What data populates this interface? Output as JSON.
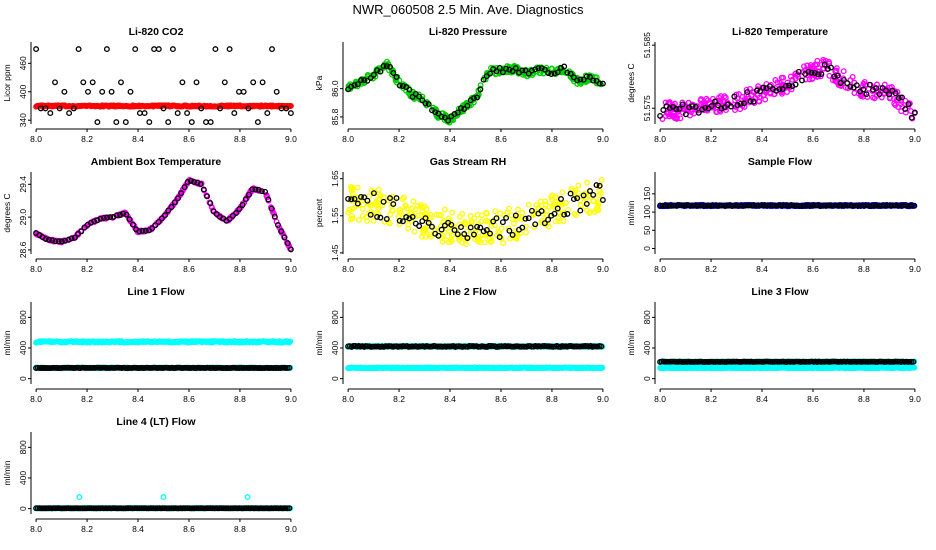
{
  "title": "NWR_060508  2.5 Min. Ave. Diagnostics",
  "colors": {
    "black": "#000000",
    "red": "#ff0000",
    "green": "#00cc00",
    "magenta": "#ff00ff",
    "yellow": "#ffff00",
    "cyan": "#00ffff",
    "blue": "#0000ff"
  },
  "chart_data": [
    {
      "type": "scatter",
      "title": "Li-820 CO2",
      "xlabel": "",
      "ylabel": "Licor ppm",
      "xlim": [
        7.98,
        9.02
      ],
      "ylim": [
        332,
        505
      ],
      "xticks": [
        "8.0",
        "8.2",
        "8.4",
        "8.6",
        "8.8",
        "9.0"
      ],
      "yticks": [
        "340",
        "400",
        "460"
      ],
      "ytick_values": [
        340,
        400,
        460
      ],
      "gen": {
        "kind": "co2"
      },
      "series": [
        {
          "name": "red",
          "color": "red",
          "values_summary": "~370 ppm flat"
        },
        {
          "name": "black",
          "color": "black",
          "levels": [
            336,
            355,
            365,
            400,
            420,
            490
          ]
        }
      ]
    },
    {
      "type": "scatter",
      "title": "Li-820 Pressure",
      "xlabel": "",
      "ylabel": "kPa",
      "xlim": [
        7.98,
        9.02
      ],
      "ylim": [
        85.75,
        86.33
      ],
      "xticks": [
        "8.0",
        "8.2",
        "8.4",
        "8.6",
        "8.8",
        "9.0"
      ],
      "yticks": [
        "85.8",
        "86.0"
      ],
      "ytick_values": [
        85.8,
        86.0
      ],
      "gen": {
        "kind": "curve",
        "color": "green",
        "spread": 0.05,
        "x": [
          8.0,
          8.05,
          8.1,
          8.15,
          8.2,
          8.25,
          8.3,
          8.35,
          8.4,
          8.45,
          8.5,
          8.55,
          8.6,
          8.65,
          8.7,
          8.75,
          8.8,
          8.85,
          8.9,
          8.95,
          9.0
        ],
        "y": [
          86.0,
          86.05,
          86.09,
          86.18,
          86.04,
          85.96,
          85.92,
          85.82,
          85.78,
          85.86,
          85.93,
          86.12,
          86.13,
          86.14,
          86.11,
          86.13,
          86.12,
          86.14,
          86.05,
          86.08,
          86.04
        ]
      }
    },
    {
      "type": "scatter",
      "title": "Li-820 Temperature",
      "xlabel": "",
      "ylabel": "degrees C",
      "xlim": [
        7.98,
        9.02
      ],
      "ylim": [
        51.5725,
        51.5855
      ],
      "xticks": [
        "8.0",
        "8.2",
        "8.4",
        "8.6",
        "8.8",
        "9.0"
      ],
      "yticks": [
        "51.575",
        "51.585"
      ],
      "ytick_values": [
        51.575,
        51.585
      ],
      "gen": {
        "kind": "curve",
        "color": "magenta",
        "spread": 0.0028,
        "x": [
          8.0,
          8.1,
          8.2,
          8.3,
          8.4,
          8.5,
          8.55,
          8.6,
          8.65,
          8.7,
          8.8,
          8.9,
          9.0
        ],
        "y": [
          51.5745,
          51.5748,
          51.5755,
          51.576,
          51.5775,
          51.579,
          51.58,
          51.581,
          51.5815,
          51.58,
          51.578,
          51.5775,
          51.574
        ]
      }
    },
    {
      "type": "scatter",
      "title": "Ambient Box Temperature",
      "xlabel": "",
      "ylabel": "degrees C",
      "xlim": [
        7.98,
        9.02
      ],
      "ylim": [
        28.55,
        29.55
      ],
      "xticks": [
        "8.0",
        "8.2",
        "8.4",
        "8.6",
        "8.8",
        "9.0"
      ],
      "yticks": [
        "28.6",
        "29.0",
        "29.4"
      ],
      "ytick_values": [
        28.6,
        29.0,
        29.4
      ],
      "gen": {
        "kind": "curve",
        "color": "magenta",
        "spread": 0.02,
        "x": [
          8.0,
          8.05,
          8.1,
          8.15,
          8.2,
          8.25,
          8.3,
          8.35,
          8.4,
          8.45,
          8.5,
          8.55,
          8.6,
          8.65,
          8.7,
          8.75,
          8.8,
          8.85,
          8.9,
          8.95,
          9.0
        ],
        "y": [
          28.8,
          28.72,
          28.7,
          28.75,
          28.9,
          28.98,
          29.0,
          29.05,
          28.82,
          28.85,
          29.0,
          29.2,
          29.45,
          29.4,
          29.05,
          28.95,
          29.1,
          29.35,
          29.3,
          28.9,
          28.6
        ]
      }
    },
    {
      "type": "scatter",
      "title": "Gas Stream RH",
      "xlabel": "",
      "ylabel": "percent",
      "xlim": [
        7.98,
        9.02
      ],
      "ylim": [
        1.447,
        1.668
      ],
      "xticks": [
        "8.0",
        "8.2",
        "8.4",
        "8.6",
        "8.8",
        "9.0"
      ],
      "yticks": [
        "1.45",
        "1.55",
        "1.65"
      ],
      "ytick_values": [
        1.45,
        1.55,
        1.65
      ],
      "gen": {
        "kind": "curve",
        "color": "yellow",
        "spread": 0.09,
        "x": [
          8.0,
          8.1,
          8.2,
          8.3,
          8.4,
          8.5,
          8.6,
          8.7,
          8.8,
          8.9,
          9.0
        ],
        "y": [
          1.585,
          1.58,
          1.565,
          1.535,
          1.52,
          1.51,
          1.52,
          1.535,
          1.56,
          1.59,
          1.61
        ]
      }
    },
    {
      "type": "scatter",
      "title": "Sample Flow",
      "xlabel": "",
      "ylabel": "ml/min",
      "xlim": [
        7.98,
        9.02
      ],
      "ylim": [
        -15,
        210
      ],
      "xticks": [
        "8.0",
        "8.2",
        "8.4",
        "8.6",
        "8.8",
        "9.0"
      ],
      "yticks": [
        "0",
        "50",
        "100",
        "150"
      ],
      "ytick_values": [
        0,
        50,
        100,
        150
      ],
      "gen": {
        "kind": "flat",
        "levels": [
          {
            "y": 118,
            "color": "blue",
            "jitter": 2
          },
          {
            "y": 118,
            "color": "black",
            "jitter": 1,
            "sparse": 3
          }
        ]
      }
    },
    {
      "type": "scatter",
      "title": "Line 1 Flow",
      "xlabel": "",
      "ylabel": "ml/min",
      "xlim": [
        7.98,
        9.02
      ],
      "ylim": [
        -70,
        1000
      ],
      "xticks": [
        "8.0",
        "8.2",
        "8.4",
        "8.6",
        "8.8",
        "9.0"
      ],
      "yticks": [
        "0",
        "400",
        "800"
      ],
      "ytick_values": [
        0,
        400,
        800
      ],
      "gen": {
        "kind": "flat",
        "levels": [
          {
            "y": 480,
            "color": "cyan",
            "jitter": 10
          },
          {
            "y": 140,
            "color": "cyan",
            "jitter": 5
          },
          {
            "y": 140,
            "color": "black",
            "jitter": 3,
            "sparse": 2
          }
        ]
      }
    },
    {
      "type": "scatter",
      "title": "Line 2 Flow",
      "xlabel": "",
      "ylabel": "ml/min",
      "xlim": [
        7.98,
        9.02
      ],
      "ylim": [
        -70,
        1000
      ],
      "xticks": [
        "8.0",
        "8.2",
        "8.4",
        "8.6",
        "8.8",
        "9.0"
      ],
      "yticks": [
        "0",
        "400",
        "800"
      ],
      "ytick_values": [
        0,
        400,
        800
      ],
      "gen": {
        "kind": "flat",
        "levels": [
          {
            "y": 420,
            "color": "cyan",
            "jitter": 8
          },
          {
            "y": 140,
            "color": "cyan",
            "jitter": 5
          },
          {
            "y": 420,
            "color": "black",
            "jitter": 6,
            "sparse": 2
          }
        ]
      }
    },
    {
      "type": "scatter",
      "title": "Line 3 Flow",
      "xlabel": "",
      "ylabel": "ml/min",
      "xlim": [
        7.98,
        9.02
      ],
      "ylim": [
        -70,
        1000
      ],
      "xticks": [
        "8.0",
        "8.2",
        "8.4",
        "8.6",
        "8.8",
        "9.0"
      ],
      "yticks": [
        "0",
        "400",
        "800"
      ],
      "ytick_values": [
        0,
        400,
        800
      ],
      "gen": {
        "kind": "flat",
        "levels": [
          {
            "y": 220,
            "color": "cyan",
            "jitter": 5
          },
          {
            "y": 140,
            "color": "cyan",
            "jitter": 5
          },
          {
            "y": 220,
            "color": "black",
            "jitter": 3,
            "sparse": 2
          }
        ]
      }
    },
    {
      "type": "scatter",
      "title": "Line 4 (LT) Flow",
      "xlabel": "",
      "ylabel": "ml/min",
      "xlim": [
        7.98,
        9.02
      ],
      "ylim": [
        -70,
        1000
      ],
      "xticks": [
        "8.0",
        "8.2",
        "8.4",
        "8.6",
        "8.8",
        "9.0"
      ],
      "yticks": [
        "0",
        "400",
        "800"
      ],
      "ytick_values": [
        0,
        400,
        800
      ],
      "gen": {
        "kind": "flat",
        "levels": [
          {
            "y": 5,
            "color": "cyan",
            "jitter": 2
          },
          {
            "y": 5,
            "color": "black",
            "jitter": 1,
            "sparse": 2
          }
        ],
        "outliers": [
          {
            "x": 8.17,
            "y": 150,
            "color": "cyan"
          },
          {
            "x": 8.5,
            "y": 150,
            "color": "cyan"
          },
          {
            "x": 8.83,
            "y": 150,
            "color": "cyan"
          }
        ]
      }
    }
  ]
}
